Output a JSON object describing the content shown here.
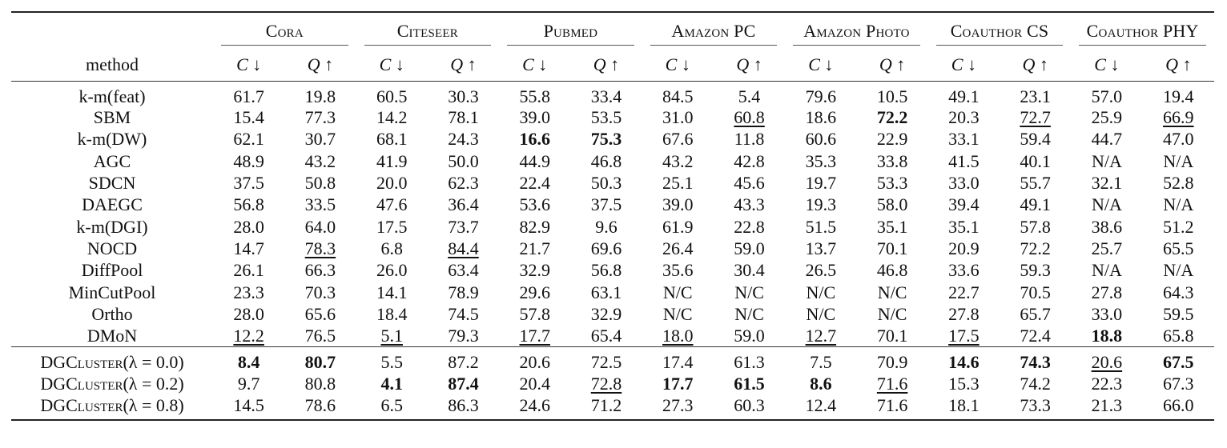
{
  "datasets": [
    "Cora",
    "Citeseer",
    "Pubmed",
    "Amazon PC",
    "Amazon Photo",
    "Coauthor CS",
    "Coauthor PHY"
  ],
  "method_header": "method",
  "metric_headers": [
    "C ↓",
    "Q ↑"
  ],
  "baselines": [
    {
      "name": "k-m(feat)",
      "values": [
        "61.7",
        "19.8",
        "60.5",
        "30.3",
        "55.8",
        "33.4",
        "84.5",
        "5.4",
        "79.6",
        "10.5",
        "49.1",
        "23.1",
        "57.0",
        "19.4"
      ],
      "bold": [],
      "underline": []
    },
    {
      "name": "SBM",
      "values": [
        "15.4",
        "77.3",
        "14.2",
        "78.1",
        "39.0",
        "53.5",
        "31.0",
        "60.8",
        "18.6",
        "72.2",
        "20.3",
        "72.7",
        "25.9",
        "66.9"
      ],
      "bold": [
        9
      ],
      "underline": [
        7,
        11,
        13
      ]
    },
    {
      "name": "k-m(DW)",
      "values": [
        "62.1",
        "30.7",
        "68.1",
        "24.3",
        "16.6",
        "75.3",
        "67.6",
        "11.8",
        "60.6",
        "22.9",
        "33.1",
        "59.4",
        "44.7",
        "47.0"
      ],
      "bold": [
        4,
        5
      ],
      "underline": []
    },
    {
      "name": "AGC",
      "values": [
        "48.9",
        "43.2",
        "41.9",
        "50.0",
        "44.9",
        "46.8",
        "43.2",
        "42.8",
        "35.3",
        "33.8",
        "41.5",
        "40.1",
        "N/A",
        "N/A"
      ],
      "bold": [],
      "underline": []
    },
    {
      "name": "SDCN",
      "values": [
        "37.5",
        "50.8",
        "20.0",
        "62.3",
        "22.4",
        "50.3",
        "25.1",
        "45.6",
        "19.7",
        "53.3",
        "33.0",
        "55.7",
        "32.1",
        "52.8"
      ],
      "bold": [],
      "underline": []
    },
    {
      "name": "DAEGC",
      "values": [
        "56.8",
        "33.5",
        "47.6",
        "36.4",
        "53.6",
        "37.5",
        "39.0",
        "43.3",
        "19.3",
        "58.0",
        "39.4",
        "49.1",
        "N/A",
        "N/A"
      ],
      "bold": [],
      "underline": []
    },
    {
      "name": "k-m(DGI)",
      "values": [
        "28.0",
        "64.0",
        "17.5",
        "73.7",
        "82.9",
        "9.6",
        "61.9",
        "22.8",
        "51.5",
        "35.1",
        "35.1",
        "57.8",
        "38.6",
        "51.2"
      ],
      "bold": [],
      "underline": []
    },
    {
      "name": "NOCD",
      "values": [
        "14.7",
        "78.3",
        "6.8",
        "84.4",
        "21.7",
        "69.6",
        "26.4",
        "59.0",
        "13.7",
        "70.1",
        "20.9",
        "72.2",
        "25.7",
        "65.5"
      ],
      "bold": [],
      "underline": [
        1,
        3
      ]
    },
    {
      "name": "DiffPool",
      "values": [
        "26.1",
        "66.3",
        "26.0",
        "63.4",
        "32.9",
        "56.8",
        "35.6",
        "30.4",
        "26.5",
        "46.8",
        "33.6",
        "59.3",
        "N/A",
        "N/A"
      ],
      "bold": [],
      "underline": []
    },
    {
      "name": "MinCutPool",
      "values": [
        "23.3",
        "70.3",
        "14.1",
        "78.9",
        "29.6",
        "63.1",
        "N/C",
        "N/C",
        "N/C",
        "N/C",
        "22.7",
        "70.5",
        "27.8",
        "64.3"
      ],
      "bold": [],
      "underline": []
    },
    {
      "name": "Ortho",
      "values": [
        "28.0",
        "65.6",
        "18.4",
        "74.5",
        "57.8",
        "32.9",
        "N/C",
        "N/C",
        "N/C",
        "N/C",
        "27.8",
        "65.7",
        "33.0",
        "59.5"
      ],
      "bold": [],
      "underline": []
    },
    {
      "name": "DMoN",
      "values": [
        "12.2",
        "76.5",
        "5.1",
        "79.3",
        "17.7",
        "65.4",
        "18.0",
        "59.0",
        "12.7",
        "70.1",
        "17.5",
        "72.4",
        "18.8",
        "65.8"
      ],
      "bold": [
        12
      ],
      "underline": [
        0,
        2,
        4,
        6,
        8,
        10
      ]
    }
  ],
  "ours": [
    {
      "name_prefix": "DGCluster",
      "name_suffix": "(λ = 0.0)",
      "values": [
        "8.4",
        "80.7",
        "5.5",
        "87.2",
        "20.6",
        "72.5",
        "17.4",
        "61.3",
        "7.5",
        "70.9",
        "14.6",
        "74.3",
        "20.6",
        "67.5"
      ],
      "bold": [
        0,
        1,
        10,
        11,
        13
      ],
      "underline": [
        12
      ]
    },
    {
      "name_prefix": "DGCluster",
      "name_suffix": "(λ = 0.2)",
      "values": [
        "9.7",
        "80.8",
        "4.1",
        "87.4",
        "20.4",
        "72.8",
        "17.7",
        "61.5",
        "8.6",
        "71.6",
        "15.3",
        "74.2",
        "22.3",
        "67.3"
      ],
      "bold": [
        2,
        3,
        6,
        7,
        8
      ],
      "underline": [
        5,
        9
      ]
    },
    {
      "name_prefix": "DGCluster",
      "name_suffix": "(λ = 0.8)",
      "values": [
        "14.5",
        "78.6",
        "6.5",
        "86.3",
        "24.6",
        "71.2",
        "27.3",
        "60.3",
        "12.4",
        "71.6",
        "18.1",
        "73.3",
        "21.3",
        "66.0"
      ],
      "bold": [],
      "underline": []
    }
  ]
}
